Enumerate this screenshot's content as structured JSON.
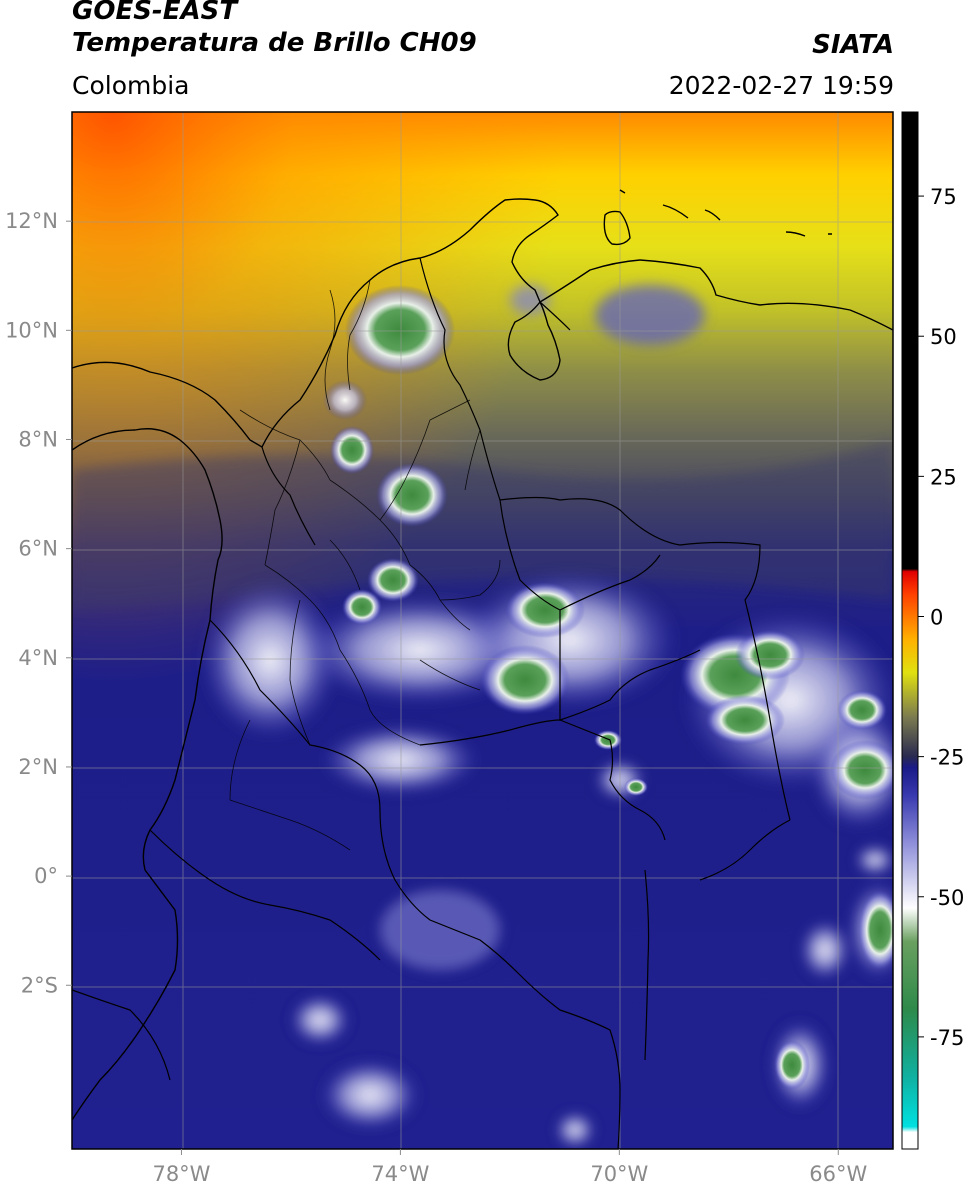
{
  "header": {
    "satellite": "GOES-EAST",
    "product": "Temperatura de Brillo CH09",
    "source": "SIATA",
    "region": "Colombia",
    "timestamp": "2022-02-27 19:59"
  },
  "map": {
    "projection": "plate-carree",
    "extent": {
      "lon_min": -80,
      "lon_max": -65,
      "lat_min": -5,
      "lat_max": 14
    },
    "gridlines": true,
    "lat_ticks": [
      {
        "value": 12,
        "label": "12°N"
      },
      {
        "value": 10,
        "label": "10°N"
      },
      {
        "value": 8,
        "label": "8°N"
      },
      {
        "value": 6,
        "label": "6°N"
      },
      {
        "value": 4,
        "label": "4°N"
      },
      {
        "value": 2,
        "label": "2°N"
      },
      {
        "value": 0,
        "label": "0°"
      },
      {
        "value": -2,
        "label": "2°S"
      }
    ],
    "lon_ticks": [
      {
        "value": -78,
        "label": "78°W"
      },
      {
        "value": -74,
        "label": "74°W"
      },
      {
        "value": -70,
        "label": "70°W"
      },
      {
        "value": -66,
        "label": "66°W"
      }
    ]
  },
  "colorbar": {
    "min": -95,
    "max": 90,
    "ticks": [
      {
        "value": 75,
        "label": "75"
      },
      {
        "value": 50,
        "label": "50"
      },
      {
        "value": 25,
        "label": "25"
      },
      {
        "value": 0,
        "label": "0"
      },
      {
        "value": -25,
        "label": "-25"
      },
      {
        "value": -50,
        "label": "-50"
      },
      {
        "value": -75,
        "label": "-75"
      }
    ],
    "stops": [
      {
        "value": -95,
        "color": "#ffffff"
      },
      {
        "value": -92,
        "color": "#ffffff"
      },
      {
        "value": -91,
        "color": "#00e0e0"
      },
      {
        "value": -82,
        "color": "#10b0a0"
      },
      {
        "value": -70,
        "color": "#2e8a4a"
      },
      {
        "value": -58,
        "color": "#6aa060"
      },
      {
        "value": -52,
        "color": "#ffffff"
      },
      {
        "value": -40,
        "color": "#8a8ad8"
      },
      {
        "value": -32,
        "color": "#3a3ab0"
      },
      {
        "value": -27,
        "color": "#1a1a88"
      },
      {
        "value": -25,
        "color": "#2a2a50"
      },
      {
        "value": -18,
        "color": "#7a7a50"
      },
      {
        "value": -10,
        "color": "#e0e010"
      },
      {
        "value": -4,
        "color": "#ffb000"
      },
      {
        "value": 4,
        "color": "#ff4000"
      },
      {
        "value": 8,
        "color": "#e00000"
      },
      {
        "value": 8.5,
        "color": "#000000"
      },
      {
        "value": 90,
        "color": "#000000"
      }
    ]
  }
}
